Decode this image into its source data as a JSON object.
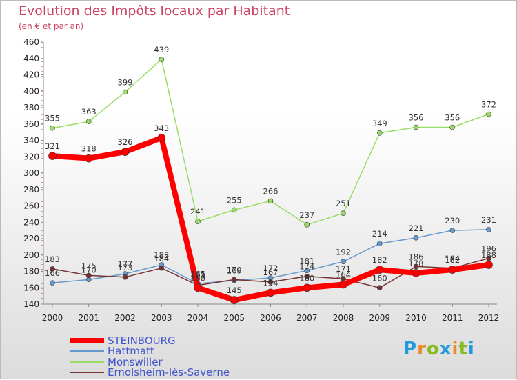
{
  "chart_data": {
    "type": "line",
    "title": "Evolution des Impôts locaux par Habitant",
    "subtitle": "(en € et par an)",
    "xlabel": "",
    "ylabel": "",
    "x": [
      "2000",
      "2001",
      "2002",
      "2003",
      "2004",
      "2005",
      "2006",
      "2007",
      "2008",
      "2009",
      "2010",
      "2011",
      "2012"
    ],
    "ylim": [
      140,
      460
    ],
    "yticks": [
      140,
      160,
      180,
      200,
      220,
      240,
      260,
      280,
      300,
      320,
      340,
      360,
      380,
      400,
      420,
      440,
      460
    ],
    "grid": false,
    "legend_position": "bottom-left",
    "series": [
      {
        "name": "STEINBOURG",
        "color": "#ff0000",
        "line_width": 8,
        "values": [
          321,
          318,
          326,
          343,
          160,
          145,
          154,
          160,
          164,
          182,
          178,
          182,
          188
        ],
        "labels": [
          "321",
          "318",
          "326",
          "343",
          "160",
          "145",
          "154",
          "160",
          "164",
          "182",
          "178",
          "182",
          "188"
        ]
      },
      {
        "name": "Hattmatt",
        "color": "#6699cc",
        "line_width": 1.5,
        "values": [
          166,
          170,
          177,
          188,
          165,
          169,
          172,
          181,
          192,
          214,
          221,
          230,
          231
        ],
        "labels": [
          "166",
          "170",
          "177",
          "188",
          "165",
          "169",
          "172",
          "181",
          "192",
          "214",
          "221",
          "230",
          "231"
        ]
      },
      {
        "name": "Monswiller",
        "color": "#99dd66",
        "line_width": 1.5,
        "values": [
          355,
          363,
          399,
          439,
          241,
          255,
          266,
          237,
          251,
          349,
          356,
          356,
          372
        ],
        "labels": [
          "355",
          "363",
          "399",
          "439",
          "241",
          "255",
          "266",
          "237",
          "251",
          "349",
          "356",
          "356",
          "372"
        ]
      },
      {
        "name": "Ernolsheim-lès-Saverne",
        "color": "#773333",
        "line_width": 1.5,
        "values": [
          183,
          175,
          173,
          184,
          163,
          170,
          167,
          174,
          171,
          160,
          186,
          184,
          196
        ],
        "labels": [
          "183",
          "175",
          "173",
          "184",
          "163",
          "170",
          "167",
          "174",
          "171",
          "160",
          "186",
          "184",
          "196"
        ]
      }
    ]
  },
  "logo": {
    "text": "Proxiti",
    "letters": [
      "P",
      "r",
      "o",
      "x",
      "i",
      "t",
      "i"
    ]
  }
}
